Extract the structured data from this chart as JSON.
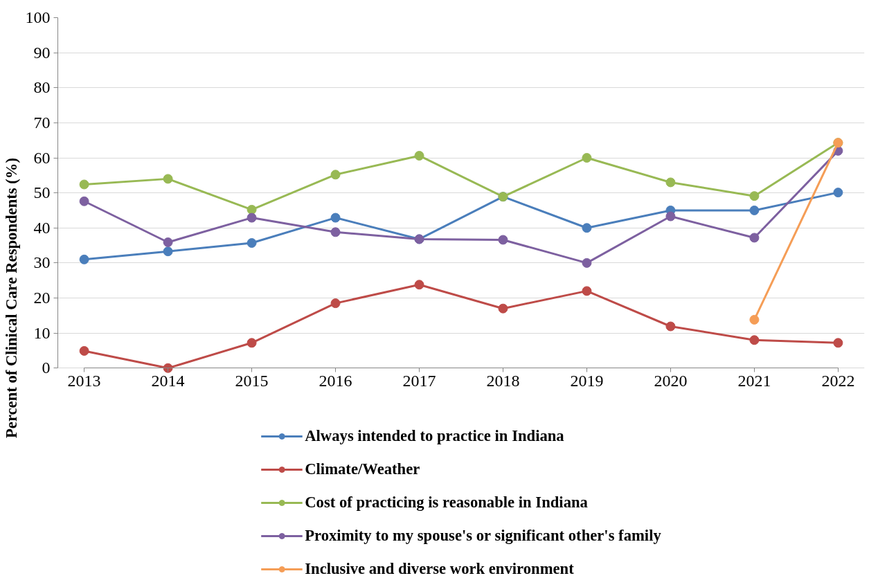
{
  "chart_data": {
    "type": "line",
    "ylabel": "Percent of Clinical Care Respondents (%)",
    "x": [
      2013,
      2014,
      2015,
      2016,
      2017,
      2018,
      2019,
      2020,
      2021,
      2022
    ],
    "xlim": [
      2013,
      2022
    ],
    "xticks": [
      2013,
      2014,
      2015,
      2016,
      2017,
      2018,
      2019,
      2020,
      2021,
      2022
    ],
    "ylim": [
      0,
      100
    ],
    "yticks": [
      0,
      10,
      20,
      30,
      40,
      50,
      60,
      70,
      80,
      90,
      100
    ],
    "grid": "y",
    "legend": "bottom",
    "marker": "circle",
    "line_style": "solid",
    "series": [
      {
        "name": "Always intended to practice in Indiana",
        "color": "#4a7ebb",
        "values": [
          31.0,
          33.3,
          35.7,
          42.9,
          36.8,
          48.9,
          40.0,
          45.0,
          45.0,
          50.1
        ]
      },
      {
        "name": "Climate/Weather",
        "color": "#be4b48",
        "values": [
          4.9,
          0,
          7.2,
          18.5,
          23.8,
          17.0,
          22.0,
          11.9,
          8.0,
          7.2
        ]
      },
      {
        "name": "Cost of practicing is reasonable in Indiana",
        "color": "#98b954",
        "values": [
          52.4,
          54.0,
          45.2,
          55.2,
          60.6,
          48.9,
          60.0,
          53.0,
          49.1,
          64.3
        ]
      },
      {
        "name": "Proximity to my spouse's or significant other's family",
        "color": "#7d60a0",
        "values": [
          47.6,
          35.9,
          42.9,
          38.8,
          36.8,
          36.6,
          30.0,
          43.3,
          37.2,
          62.0
        ]
      },
      {
        "name": "Inclusive and diverse work environment",
        "color": "#f59d56",
        "values": [
          null,
          null,
          null,
          null,
          null,
          null,
          null,
          null,
          13.8,
          64.3
        ]
      }
    ]
  }
}
